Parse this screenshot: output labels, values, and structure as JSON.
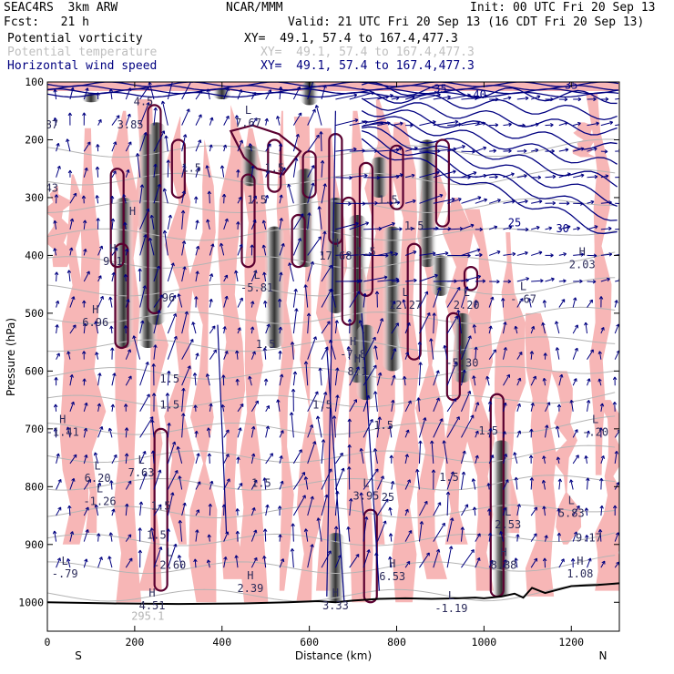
{
  "header": {
    "model": "SEAC4RS  3km ARW",
    "org": "NCAR/MMM",
    "init": "Init: 00 UTC Fri 20 Sep 13",
    "fcst": "Fcst:   21 h",
    "valid": "Valid: 21 UTC Fri 20 Sep 13 (16 CDT Fri 20 Sep 13)",
    "fields": [
      {
        "name": "Potential vorticity",
        "xy": "XY=  49.1, 57.4 to 167.4,477.3",
        "color": "#000000"
      },
      {
        "name": "Potential temperature",
        "xy": "XY=  49.1, 57.4 to 167.4,477.3",
        "color": "#bfbfbf"
      },
      {
        "name": "Horizontal wind speed",
        "xy": "XY=  49.1, 57.4 to 167.4,477.3",
        "color": "#000080"
      }
    ]
  },
  "chart_data": {
    "type": "cross-section",
    "xlabel": "Distance (km)",
    "ylabel": "Pressure (hPa)",
    "x_ticks": [
      "0",
      "200",
      "400",
      "600",
      "800",
      "1000",
      "1200"
    ],
    "y_ticks": [
      "100",
      "200",
      "300",
      "400",
      "500",
      "600",
      "700",
      "800",
      "900",
      "1000"
    ],
    "xlim": [
      0,
      1310
    ],
    "ylim": [
      1050,
      100
    ],
    "left_end": "S",
    "right_end": "N",
    "colors": {
      "pv_positive_fill": "#f7b6b6",
      "pv_contour": "#5a0030",
      "wind_contour": "#000080",
      "theta_contour": "#b4b4b4",
      "terrain": "#000000"
    },
    "wind_speed_labels": [
      {
        "x": 900,
        "p": 118,
        "text": "35"
      },
      {
        "x": 990,
        "p": 128,
        "text": "40"
      },
      {
        "x": 1200,
        "p": 112,
        "text": "35"
      },
      {
        "x": 1070,
        "p": 350,
        "text": "25"
      },
      {
        "x": 1180,
        "p": 360,
        "text": "30"
      }
    ],
    "pv_labels": [
      {
        "x": 220,
        "p": 140,
        "text": "4.5"
      },
      {
        "x": 190,
        "p": 180,
        "text": "3.85"
      },
      {
        "x": 10,
        "p": 180,
        "text": "87"
      },
      {
        "x": 10,
        "p": 290,
        "text": "43"
      },
      {
        "x": 330,
        "p": 255,
        "text": "1.5"
      },
      {
        "x": 520,
        "p": 255,
        "text": "1.5"
      },
      {
        "x": 480,
        "p": 310,
        "text": "1.5"
      },
      {
        "x": 780,
        "p": 310,
        "text": "1.5"
      },
      {
        "x": 840,
        "p": 355,
        "text": "1.5"
      },
      {
        "x": 270,
        "p": 480,
        "text": ".96"
      },
      {
        "x": 500,
        "p": 560,
        "text": "1.5"
      },
      {
        "x": 730,
        "p": 400,
        "text": "1.5"
      },
      {
        "x": 280,
        "p": 620,
        "text": "1.5"
      },
      {
        "x": 280,
        "p": 665,
        "text": "1.5"
      },
      {
        "x": 630,
        "p": 665,
        "text": "1.5"
      },
      {
        "x": 770,
        "p": 700,
        "text": "1.5"
      },
      {
        "x": 920,
        "p": 790,
        "text": "1.5"
      },
      {
        "x": 490,
        "p": 800,
        "text": "1.5"
      },
      {
        "x": 780,
        "p": 825,
        "text": "25"
      },
      {
        "x": 1010,
        "p": 710,
        "text": "1.5"
      },
      {
        "x": 260,
        "p": 840,
        "text": "1.5"
      },
      {
        "x": 250,
        "p": 890,
        "text": "1.5"
      },
      {
        "x": 1240,
        "p": 895,
        "text": "9.17"
      }
    ],
    "extrema": [
      {
        "x": 460,
        "p": 155,
        "kind": "L",
        "value": "7.67"
      },
      {
        "x": 195,
        "p": 330,
        "kind": "H",
        "value": ""
      },
      {
        "x": 150,
        "p": 395,
        "kind": "H",
        "value": "9.1"
      },
      {
        "x": 480,
        "p": 440,
        "kind": "L",
        "value": "-5.81"
      },
      {
        "x": 660,
        "p": 385,
        "kind": "H",
        "value": "17.68"
      },
      {
        "x": 820,
        "p": 470,
        "kind": "L",
        "value": "12.27"
      },
      {
        "x": 700,
        "p": 555,
        "kind": "H",
        "value": "-7.8"
      },
      {
        "x": 710,
        "p": 585,
        "kind": "H",
        "value": "8.1"
      },
      {
        "x": 950,
        "p": 570,
        "kind": "L",
        "value": "-5.30"
      },
      {
        "x": 1090,
        "p": 460,
        "kind": "L",
        "value": "-.67"
      },
      {
        "x": 1225,
        "p": 400,
        "kind": "H",
        "value": "2.03"
      },
      {
        "x": 960,
        "p": 470,
        "kind": "L",
        "value": "2.20"
      },
      {
        "x": 110,
        "p": 500,
        "kind": "H",
        "value": "6.96"
      },
      {
        "x": 35,
        "p": 690,
        "kind": "H",
        "value": "-1.41"
      },
      {
        "x": 1255,
        "p": 690,
        "kind": "L",
        "value": "-.20"
      },
      {
        "x": 115,
        "p": 770,
        "kind": "L",
        "value": "6.20"
      },
      {
        "x": 120,
        "p": 810,
        "kind": "L",
        "value": "-1.26"
      },
      {
        "x": 215,
        "p": 760,
        "kind": "L",
        "value": "7.63"
      },
      {
        "x": 280,
        "p": 920,
        "kind": "L",
        "value": "-2.60"
      },
      {
        "x": 40,
        "p": 935,
        "kind": "L",
        "value": "-.79"
      },
      {
        "x": 240,
        "p": 990,
        "kind": "H",
        "value": "4.51"
      },
      {
        "x": 465,
        "p": 960,
        "kind": "H",
        "value": "2.39"
      },
      {
        "x": 660,
        "p": 990,
        "kind": "H",
        "value": "3.33"
      },
      {
        "x": 790,
        "p": 940,
        "kind": "H",
        "value": "6.53"
      },
      {
        "x": 925,
        "p": 995,
        "kind": "L",
        "value": "-1.19"
      },
      {
        "x": 1055,
        "p": 850,
        "kind": "L",
        "value": "2.53"
      },
      {
        "x": 1045,
        "p": 920,
        "kind": "H",
        "value": "8.88"
      },
      {
        "x": 1200,
        "p": 830,
        "kind": "L",
        "value": "5.83"
      },
      {
        "x": 1220,
        "p": 935,
        "kind": "H",
        "value": "1.08"
      },
      {
        "x": 730,
        "p": 800,
        "kind": "L",
        "value": "3.95"
      }
    ],
    "theta_labels": [
      {
        "x": 230,
        "p": 1030,
        "text": "295.1"
      }
    ]
  }
}
